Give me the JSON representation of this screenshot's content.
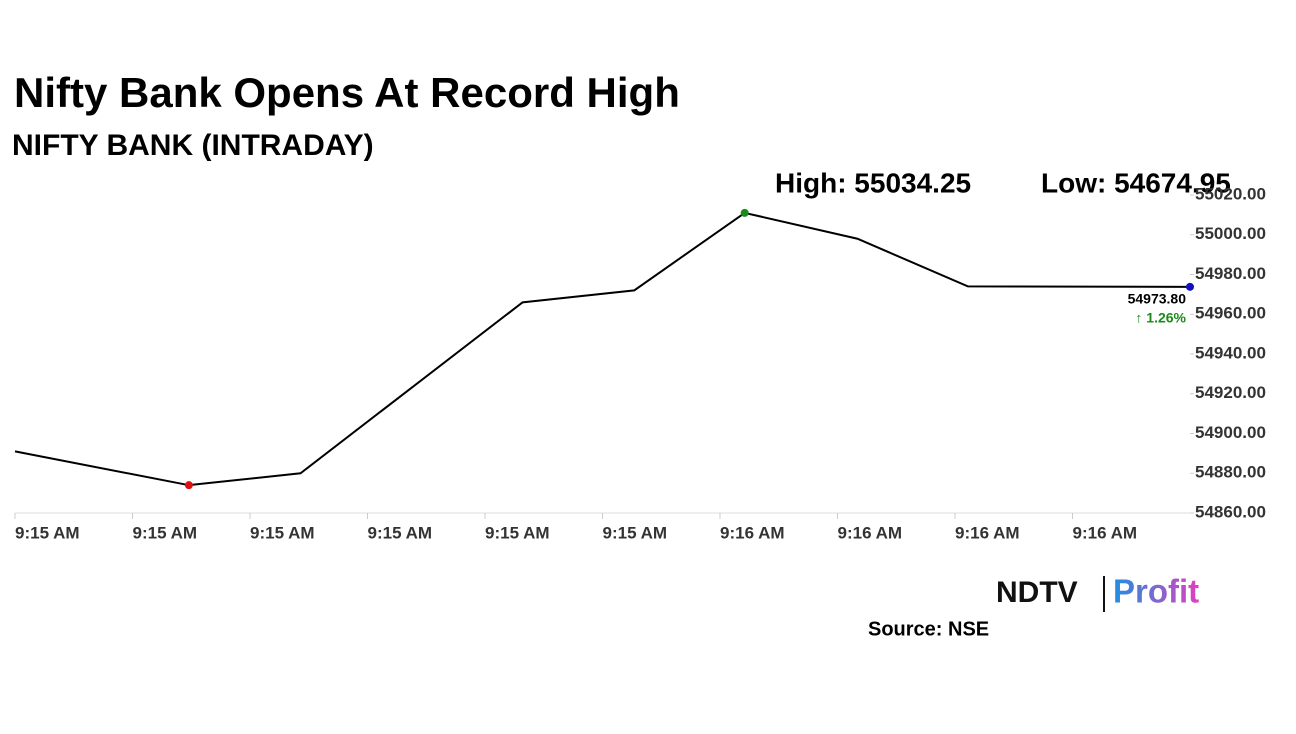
{
  "chart_data": {
    "type": "line",
    "title": "Nifty Bank Opens At Record High",
    "subtitle": "NIFTY BANK (INTRADAY)",
    "annotations": {
      "high": "High: 55034.25",
      "low": "Low: 54674.95",
      "last": "54973.80",
      "change": "↑ 1.26%"
    },
    "x": [
      0,
      14.8,
      24.3,
      43.2,
      52.7,
      62.1,
      71.7,
      81.1,
      100
    ],
    "series": [
      {
        "name": "NIFTY BANK",
        "color": "#000000",
        "values": [
          54891,
          54874,
          54880,
          54966,
          54972,
          55011,
          54998,
          54974,
          54973.8
        ]
      }
    ],
    "markers": [
      {
        "index": 1,
        "color": "#e01010"
      },
      {
        "index": 5,
        "color": "#1a8a1a"
      },
      {
        "index": 8,
        "color": "#1010c0"
      }
    ],
    "xlim": [
      0,
      100
    ],
    "xticks": [
      {
        "value": 0,
        "label": "9:15 AM"
      },
      {
        "value": 10,
        "label": "9:15 AM"
      },
      {
        "value": 20,
        "label": "9:15 AM"
      },
      {
        "value": 30,
        "label": "9:15 AM"
      },
      {
        "value": 40,
        "label": "9:15 AM"
      },
      {
        "value": 50,
        "label": "9:15 AM"
      },
      {
        "value": 60,
        "label": "9:16 AM"
      },
      {
        "value": 70,
        "label": "9:16 AM"
      },
      {
        "value": 80,
        "label": "9:16 AM"
      },
      {
        "value": 90,
        "label": "9:16 AM"
      }
    ],
    "ylim": [
      54860,
      55020
    ],
    "yticks": [
      {
        "value": 54860,
        "label": "54860.00"
      },
      {
        "value": 54880,
        "label": "54880.00"
      },
      {
        "value": 54900,
        "label": "54900.00"
      },
      {
        "value": 54920,
        "label": "54920.00"
      },
      {
        "value": 54940,
        "label": "54940.00"
      },
      {
        "value": 54960,
        "label": "54960.00"
      },
      {
        "value": 54980,
        "label": "54980.00"
      },
      {
        "value": 55000,
        "label": "55000.00"
      },
      {
        "value": 55020,
        "label": "55020.00"
      }
    ],
    "grid": false,
    "source": "Source: NSE",
    "logo": {
      "left": "NDTV",
      "right": "Profit"
    }
  }
}
